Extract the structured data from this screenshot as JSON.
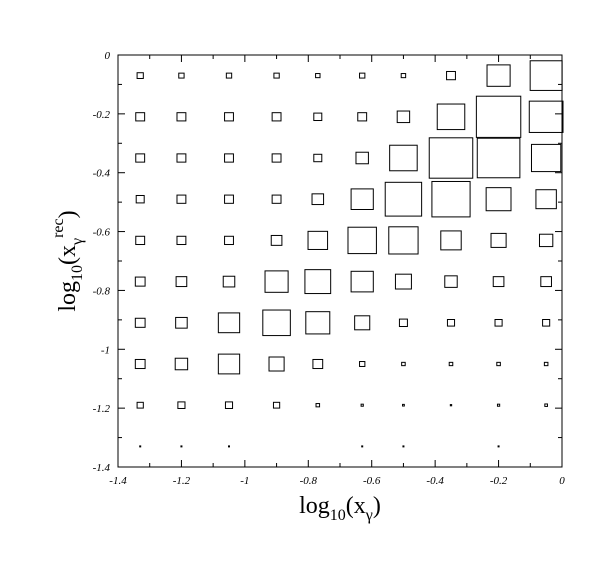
{
  "chart_data": {
    "type": "box_histogram",
    "xlabel": {
      "base": "log",
      "sub": "10",
      "open": "(x",
      "var_sub": "γ",
      "close": ")"
    },
    "ylabel": {
      "base": "log",
      "sub": "10",
      "open": "(x",
      "var_sub": "γ",
      "var_sup": "rec",
      "close": ")"
    },
    "xlim": [
      -1.4,
      0
    ],
    "ylim": [
      -1.4,
      0
    ],
    "x_ticks": [
      -1.4,
      -1.2,
      -1,
      -0.8,
      -0.6,
      -0.4,
      -0.2,
      0
    ],
    "y_ticks": [
      0,
      -0.2,
      -0.4,
      -0.6,
      -0.8,
      -1,
      -1.2,
      -1.4
    ],
    "x_tick_labels": [
      "-1.4",
      "-1.2",
      "-1",
      "-0.8",
      "-0.6",
      "-0.4",
      "-0.2",
      "0"
    ],
    "y_tick_labels": [
      "0",
      "-0.2",
      "-0.4",
      "-0.6",
      "-0.8",
      "-1",
      "-1.2",
      "-1.4"
    ],
    "x_bin_centers": [
      -1.33,
      -1.2,
      -1.05,
      -0.9,
      -0.77,
      -0.63,
      -0.5,
      -0.35,
      -0.2,
      -0.05
    ],
    "y_bin_centers": [
      -0.07,
      -0.21,
      -0.35,
      -0.49,
      -0.63,
      -0.77,
      -0.91,
      -1.05,
      -1.19,
      -1.33
    ],
    "box_sizes": [
      [
        0.14,
        0.12,
        0.12,
        0.12,
        0.1,
        0.12,
        0.1,
        0.2,
        0.52,
        0.72
      ],
      [
        0.2,
        0.2,
        0.2,
        0.2,
        0.18,
        0.2,
        0.28,
        0.62,
        1.0,
        0.76
      ],
      [
        0.2,
        0.2,
        0.2,
        0.2,
        0.18,
        0.28,
        0.62,
        0.98,
        0.96,
        0.66
      ],
      [
        0.18,
        0.2,
        0.2,
        0.2,
        0.26,
        0.5,
        0.82,
        0.86,
        0.56,
        0.46
      ],
      [
        0.2,
        0.2,
        0.2,
        0.24,
        0.44,
        0.64,
        0.66,
        0.46,
        0.34,
        0.3
      ],
      [
        0.22,
        0.24,
        0.26,
        0.52,
        0.58,
        0.5,
        0.36,
        0.28,
        0.24,
        0.24
      ],
      [
        0.22,
        0.26,
        0.48,
        0.62,
        0.54,
        0.34,
        0.18,
        0.16,
        0.16,
        0.16
      ],
      [
        0.22,
        0.28,
        0.48,
        0.34,
        0.22,
        0.12,
        0.08,
        0.08,
        0.08,
        0.08
      ],
      [
        0.14,
        0.16,
        0.16,
        0.14,
        0.08,
        0.05,
        0.04,
        0.03,
        0.05,
        0.06
      ],
      [
        0.02,
        0.02,
        0.02,
        0.0,
        0.0,
        0.02,
        0.02,
        0.0,
        0.02,
        0.0
      ]
    ]
  }
}
